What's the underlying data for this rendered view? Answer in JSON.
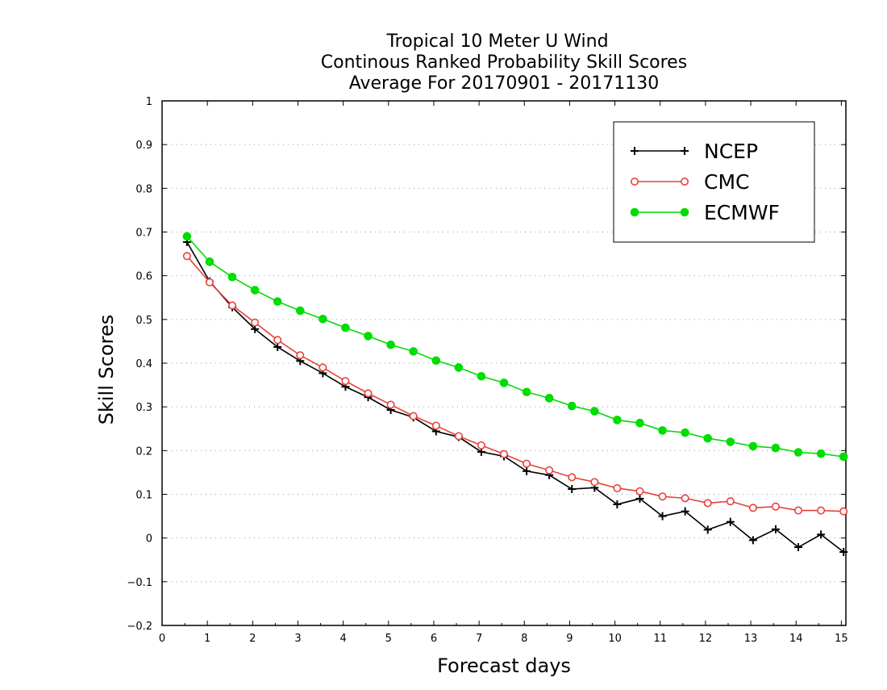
{
  "chart_data": {
    "type": "line",
    "title": [
      "Tropical 10 Meter U Wind",
      "Continous Ranked Probability Skill Scores",
      "Average For 20170901 - 20171130"
    ],
    "xlabel": "Forecast days",
    "ylabel": "Skill Scores",
    "xlim": [
      0,
      15.1
    ],
    "ylim": [
      -0.2,
      1
    ],
    "xticks": [
      "0",
      "1",
      "2",
      "3",
      "4",
      "5",
      "6",
      "7",
      "8",
      "9",
      "10",
      "11",
      "12",
      "13",
      "14",
      "15"
    ],
    "yticks": [
      "−0.2",
      "−0.1",
      "0",
      "0.1",
      "0.2",
      "0.3",
      "0.4",
      "0.5",
      "0.6",
      "0.7",
      "0.8",
      "0.9",
      "1"
    ],
    "grid": "horizontal dotted",
    "legend_position": "top-right",
    "x": [
      0.55,
      1.05,
      1.55,
      2.05,
      2.55,
      3.05,
      3.55,
      4.05,
      4.55,
      5.05,
      5.55,
      6.05,
      6.55,
      7.05,
      7.55,
      8.05,
      8.55,
      9.05,
      9.55,
      10.05,
      10.55,
      11.05,
      11.55,
      12.05,
      12.55,
      13.05,
      13.55,
      14.05,
      14.55,
      15.05
    ],
    "series": [
      {
        "name": "NCEP",
        "color": "#000000",
        "marker": "plus",
        "values": [
          0.677,
          0.587,
          0.528,
          0.478,
          0.437,
          0.405,
          0.377,
          0.346,
          0.322,
          0.293,
          0.276,
          0.244,
          0.231,
          0.197,
          0.187,
          0.153,
          0.144,
          0.112,
          0.115,
          0.077,
          0.09,
          0.05,
          0.061,
          0.019,
          0.037,
          -0.005,
          0.02,
          -0.021,
          0.008,
          -0.032
        ]
      },
      {
        "name": "CMC",
        "color": "#e8403c",
        "marker": "open-circle",
        "values": [
          0.645,
          0.585,
          0.532,
          0.493,
          0.453,
          0.418,
          0.39,
          0.359,
          0.331,
          0.305,
          0.279,
          0.257,
          0.233,
          0.212,
          0.192,
          0.17,
          0.155,
          0.139,
          0.128,
          0.114,
          0.107,
          0.095,
          0.091,
          0.08,
          0.084,
          0.069,
          0.072,
          0.063,
          0.063,
          0.061
        ]
      },
      {
        "name": "ECMWF",
        "color": "#00dd00",
        "marker": "filled-circle",
        "values": [
          0.69,
          0.632,
          0.597,
          0.567,
          0.541,
          0.52,
          0.501,
          0.481,
          0.462,
          0.442,
          0.427,
          0.406,
          0.39,
          0.37,
          0.355,
          0.334,
          0.32,
          0.302,
          0.29,
          0.27,
          0.263,
          0.246,
          0.241,
          0.228,
          0.22,
          0.21,
          0.206,
          0.196,
          0.193,
          0.186
        ]
      }
    ]
  }
}
